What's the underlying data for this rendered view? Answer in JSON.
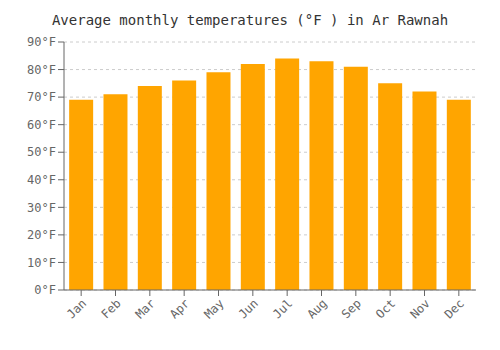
{
  "chart_data": {
    "type": "bar",
    "title": "Average monthly temperatures (°F ) in Ar Rawnah",
    "categories": [
      "Jan",
      "Feb",
      "Mar",
      "Apr",
      "May",
      "Jun",
      "Jul",
      "Aug",
      "Sep",
      "Oct",
      "Nov",
      "Dec"
    ],
    "values": [
      69,
      71,
      74,
      76,
      79,
      82,
      84,
      83,
      81,
      75,
      72,
      69
    ],
    "color": "#FFA500",
    "ylim": [
      0,
      90
    ],
    "yticks": [
      {
        "value": 0,
        "label": "0°F"
      },
      {
        "value": 10,
        "label": "10°F"
      },
      {
        "value": 20,
        "label": "20°F"
      },
      {
        "value": 30,
        "label": "30°F"
      },
      {
        "value": 40,
        "label": "40°F"
      },
      {
        "value": 50,
        "label": "50°F"
      },
      {
        "value": 60,
        "label": "60°F"
      },
      {
        "value": 70,
        "label": "70°F"
      },
      {
        "value": 80,
        "label": "80°F"
      },
      {
        "value": 90,
        "label": "90°F"
      }
    ],
    "grid": true
  }
}
